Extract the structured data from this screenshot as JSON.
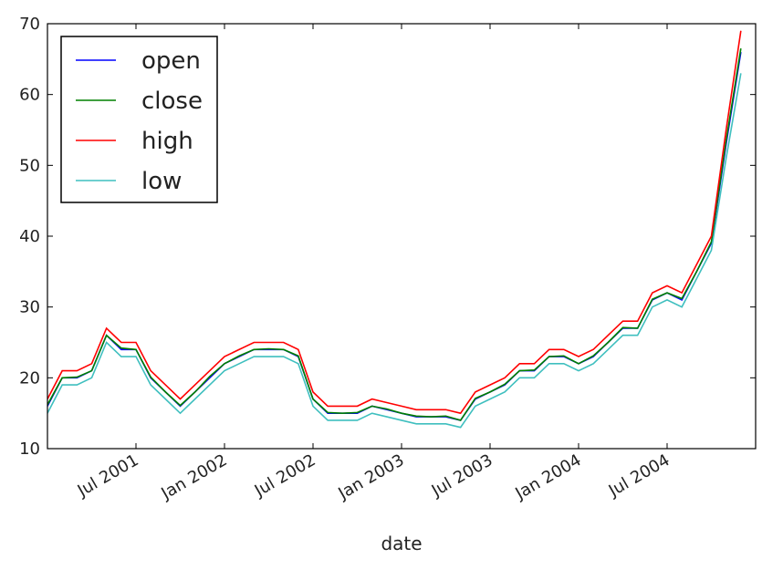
{
  "chart_data": {
    "type": "line",
    "x_label": "date",
    "x": [
      "2001-01",
      "2001-02",
      "2001-03",
      "2001-04",
      "2001-05",
      "2001-06",
      "2001-07",
      "2001-08",
      "2001-09",
      "2001-10",
      "2001-11",
      "2001-12",
      "2002-01",
      "2002-02",
      "2002-03",
      "2002-04",
      "2002-05",
      "2002-06",
      "2002-07",
      "2002-08",
      "2002-09",
      "2002-10",
      "2002-11",
      "2002-12",
      "2003-01",
      "2003-02",
      "2003-03",
      "2003-04",
      "2003-05",
      "2003-06",
      "2003-07",
      "2003-08",
      "2003-09",
      "2003-10",
      "2003-11",
      "2003-12",
      "2004-01",
      "2004-02",
      "2004-03",
      "2004-04",
      "2004-05",
      "2004-06",
      "2004-07",
      "2004-08",
      "2004-09",
      "2004-10",
      "2004-11",
      "2004-12"
    ],
    "series": [
      {
        "name": "open",
        "color": "#0000ff",
        "values": [
          16,
          20,
          20,
          21,
          26,
          24,
          24,
          20,
          18,
          16,
          18,
          20,
          22,
          23,
          24,
          24,
          24,
          23,
          17,
          15,
          15,
          15,
          16,
          15.5,
          15,
          14.5,
          14.5,
          14.5,
          14,
          17,
          18,
          19,
          21,
          21,
          23,
          23,
          22,
          23,
          25,
          27,
          27,
          31,
          32,
          31,
          35,
          39,
          53,
          66
        ]
      },
      {
        "name": "close",
        "color": "#008000",
        "values": [
          16.2,
          20,
          20.1,
          21,
          26,
          24.2,
          24,
          20.1,
          18,
          16.1,
          18,
          20.2,
          22,
          23.1,
          24,
          24.1,
          24,
          23.1,
          17,
          15.1,
          15,
          15.1,
          16,
          15.6,
          15,
          14.6,
          14.5,
          14.6,
          14,
          17.1,
          18,
          19.1,
          21,
          21.1,
          23,
          23.1,
          22,
          23.1,
          25,
          27.1,
          27,
          31.1,
          32,
          31.2,
          35,
          39.2,
          53.5,
          66.5
        ]
      },
      {
        "name": "high",
        "color": "#ff0000",
        "values": [
          17,
          21,
          21,
          22,
          27,
          25,
          25,
          21,
          19,
          17,
          19,
          21,
          23,
          24,
          25,
          25,
          25,
          24,
          18,
          16,
          16,
          16,
          17,
          16.5,
          16,
          15.5,
          15.5,
          15.5,
          15,
          18,
          19,
          20,
          22,
          22,
          24,
          24,
          23,
          24,
          26,
          28,
          28,
          32,
          33,
          32,
          36,
          40,
          55,
          69
        ]
      },
      {
        "name": "low",
        "color": "#3fbfbf",
        "values": [
          15,
          19,
          19,
          20,
          25,
          23,
          23,
          19,
          17,
          15,
          17,
          19,
          21,
          22,
          23,
          23,
          23,
          22,
          16,
          14,
          14,
          14,
          15,
          14.5,
          14,
          13.5,
          13.5,
          13.5,
          13,
          16,
          17,
          18,
          20,
          20,
          22,
          22,
          21,
          22,
          24,
          26,
          26,
          30,
          31,
          30,
          34,
          38,
          51,
          63
        ]
      }
    ],
    "xlim": [
      "2001-01",
      "2005-01"
    ],
    "xticks": [
      {
        "value": "2001-07",
        "label": "Jul 2001"
      },
      {
        "value": "2002-01",
        "label": "Jan 2002"
      },
      {
        "value": "2002-07",
        "label": "Jul 2002"
      },
      {
        "value": "2003-01",
        "label": "Jan 2003"
      },
      {
        "value": "2003-07",
        "label": "Jul 2003"
      },
      {
        "value": "2004-01",
        "label": "Jan 2004"
      },
      {
        "value": "2004-07",
        "label": "Jul 2004"
      }
    ],
    "ylim": [
      10,
      70
    ],
    "yticks": [
      10,
      20,
      30,
      40,
      50,
      60,
      70
    ],
    "legend": "upper-left"
  }
}
